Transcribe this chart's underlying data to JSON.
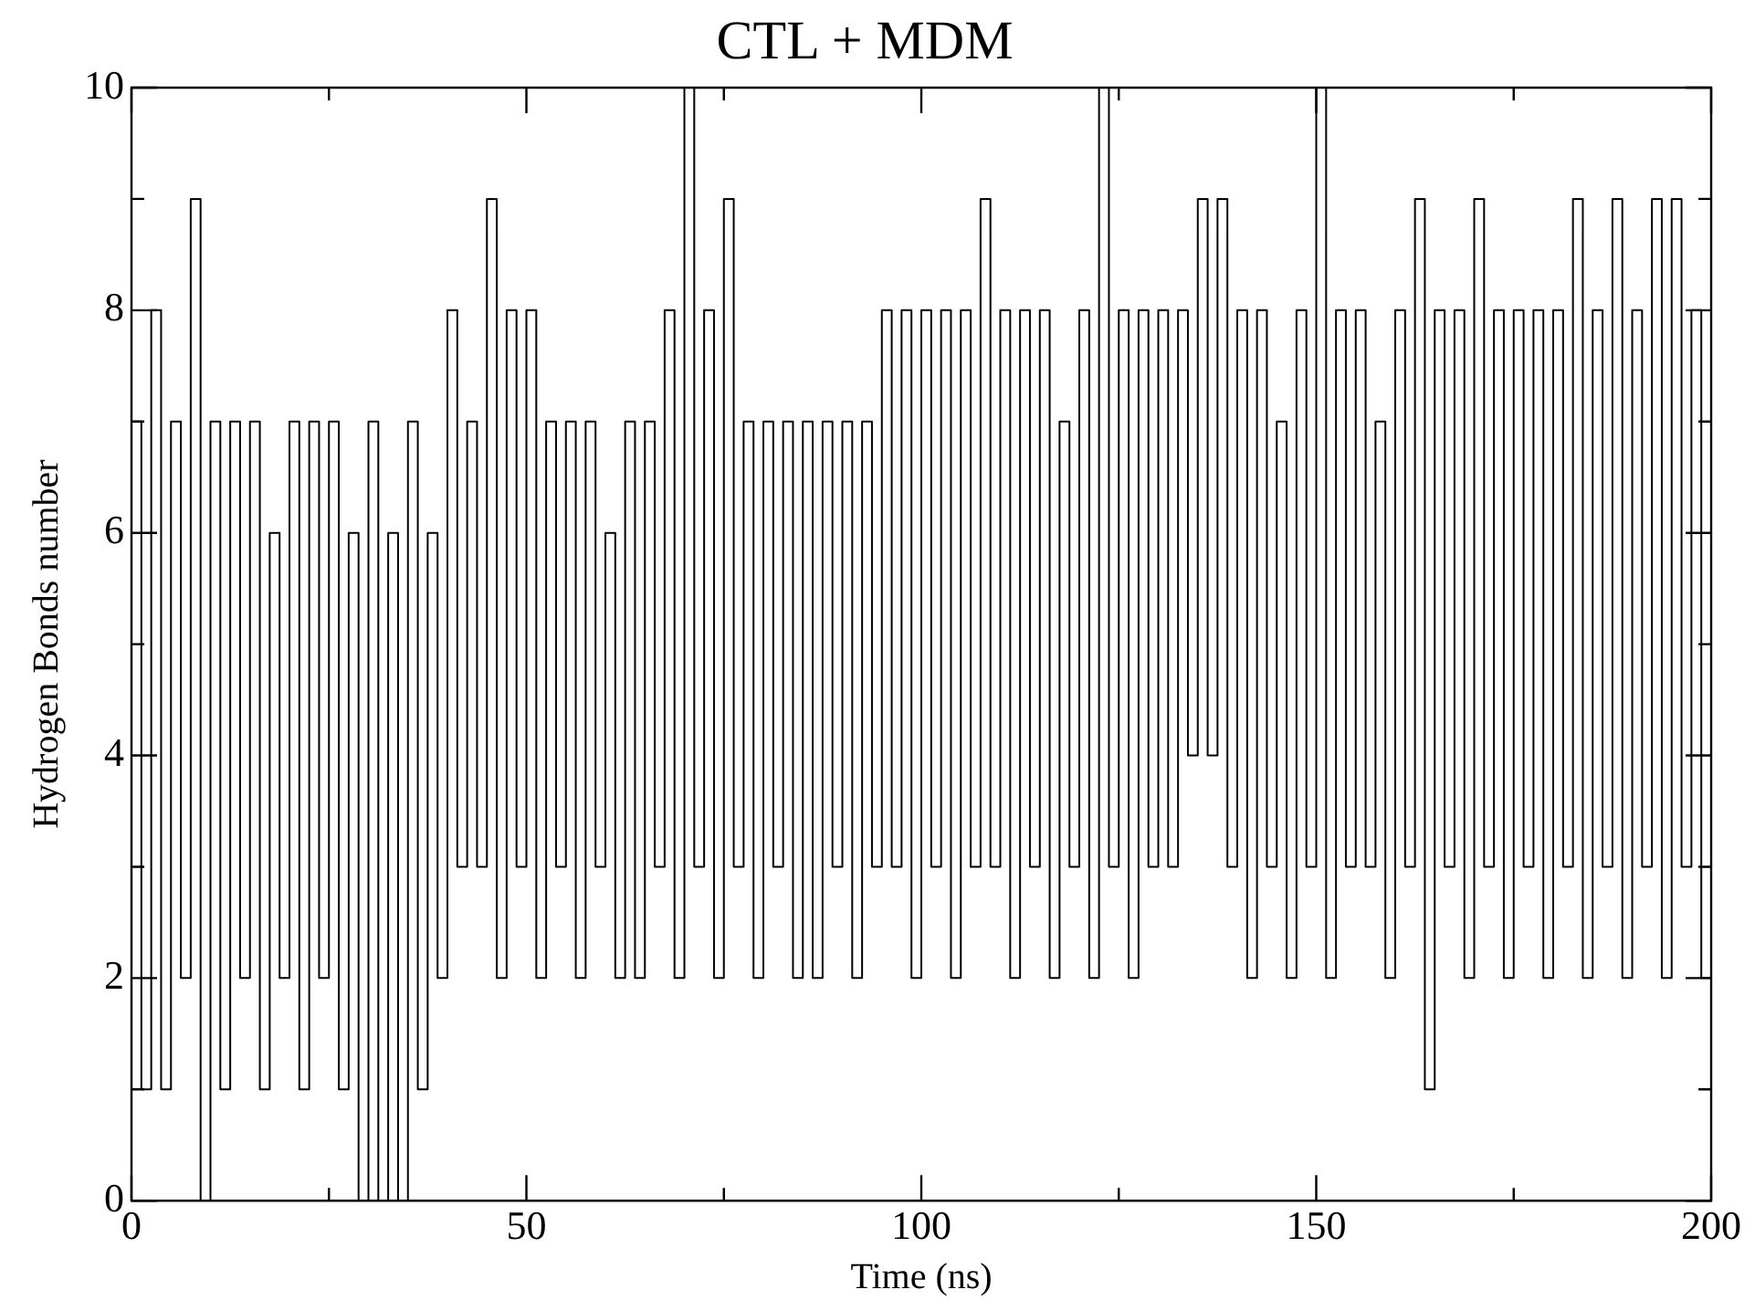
{
  "chart_data": {
    "type": "step",
    "title": "CTL + MDM",
    "xlabel": "Time (ns)",
    "ylabel": "Hydrogen Bonds number",
    "xlim": [
      0,
      200
    ],
    "xticks": [
      0,
      {
        "value": 25,
        "label": null
      },
      50,
      {
        "value": 75,
        "label": null
      },
      100,
      {
        "value": 125,
        "label": null
      },
      150,
      {
        "value": 175,
        "label": null
      },
      200
    ],
    "ylim": [
      0,
      10
    ],
    "yticks": [
      0,
      {
        "value": 1,
        "label": null
      },
      2,
      {
        "value": 3,
        "label": null
      },
      4,
      {
        "value": 5,
        "label": null
      },
      6,
      {
        "value": 7,
        "label": null
      },
      8,
      {
        "value": 9,
        "label": null
      },
      10
    ],
    "grid": false,
    "legend": false,
    "x": [
      0,
      1.25,
      2.5,
      3.75,
      5,
      6.25,
      7.5,
      8.75,
      10,
      11.25,
      12.5,
      13.75,
      15,
      16.25,
      17.5,
      18.75,
      20,
      21.25,
      22.5,
      23.75,
      25,
      26.25,
      27.5,
      28.75,
      30,
      31.25,
      32.5,
      33.75,
      35,
      36.25,
      37.5,
      38.75,
      40,
      41.25,
      42.5,
      43.75,
      45,
      46.25,
      47.5,
      48.75,
      50,
      51.25,
      52.5,
      53.75,
      55,
      56.25,
      57.5,
      58.75,
      60,
      61.25,
      62.5,
      63.75,
      65,
      66.25,
      67.5,
      68.75,
      70,
      71.25,
      72.5,
      73.75,
      75,
      76.25,
      77.5,
      78.75,
      80,
      81.25,
      82.5,
      83.75,
      85,
      86.25,
      87.5,
      88.75,
      90,
      91.25,
      92.5,
      93.75,
      95,
      96.25,
      97.5,
      98.75,
      100,
      101.25,
      102.5,
      103.75,
      105,
      106.25,
      107.5,
      108.75,
      110,
      111.25,
      112.5,
      113.75,
      115,
      116.25,
      117.5,
      118.75,
      120,
      121.25,
      122.5,
      123.75,
      125,
      126.25,
      127.5,
      128.75,
      130,
      131.25,
      132.5,
      133.75,
      135,
      136.25,
      137.5,
      138.75,
      140,
      141.25,
      142.5,
      143.75,
      145,
      146.25,
      147.5,
      148.75,
      150,
      151.25,
      152.5,
      153.75,
      155,
      156.25,
      157.5,
      158.75,
      160,
      161.25,
      162.5,
      163.75,
      165,
      166.25,
      167.5,
      168.75,
      170,
      171.25,
      172.5,
      173.75,
      175,
      176.25,
      177.5,
      178.75,
      180,
      181.25,
      182.5,
      183.75,
      185,
      186.25,
      187.5,
      188.75,
      190,
      191.25,
      192.5,
      193.75,
      195,
      196.25,
      197.5,
      198.75,
      200
    ],
    "series": [
      {
        "color": "#000000",
        "values": [
          7,
          1,
          8,
          1,
          7,
          2,
          9,
          0,
          7,
          1,
          7,
          2,
          7,
          1,
          6,
          2,
          7,
          1,
          7,
          2,
          7,
          1,
          6,
          0,
          7,
          0,
          6,
          0,
          7,
          1,
          6,
          2,
          8,
          3,
          7,
          3,
          9,
          2,
          8,
          3,
          8,
          2,
          7,
          3,
          7,
          2,
          7,
          3,
          6,
          2,
          7,
          2,
          7,
          3,
          8,
          2,
          10,
          3,
          8,
          2,
          9,
          3,
          7,
          2,
          7,
          3,
          7,
          2,
          7,
          2,
          7,
          3,
          7,
          2,
          7,
          3,
          8,
          3,
          8,
          2,
          8,
          3,
          8,
          2,
          8,
          3,
          9,
          3,
          8,
          2,
          8,
          3,
          8,
          2,
          7,
          3,
          8,
          2,
          10,
          3,
          8,
          2,
          8,
          3,
          8,
          3,
          8,
          4,
          9,
          4,
          9,
          3,
          8,
          2,
          8,
          3,
          7,
          2,
          8,
          3,
          10,
          2,
          8,
          3,
          8,
          3,
          7,
          2,
          8,
          3,
          9,
          1,
          8,
          3,
          8,
          2,
          9,
          3,
          8,
          2,
          8,
          3,
          8,
          2,
          8,
          3,
          9,
          2,
          8,
          3,
          9,
          2,
          8,
          3,
          9,
          2,
          9,
          3,
          8,
          2,
          8
        ]
      }
    ]
  }
}
